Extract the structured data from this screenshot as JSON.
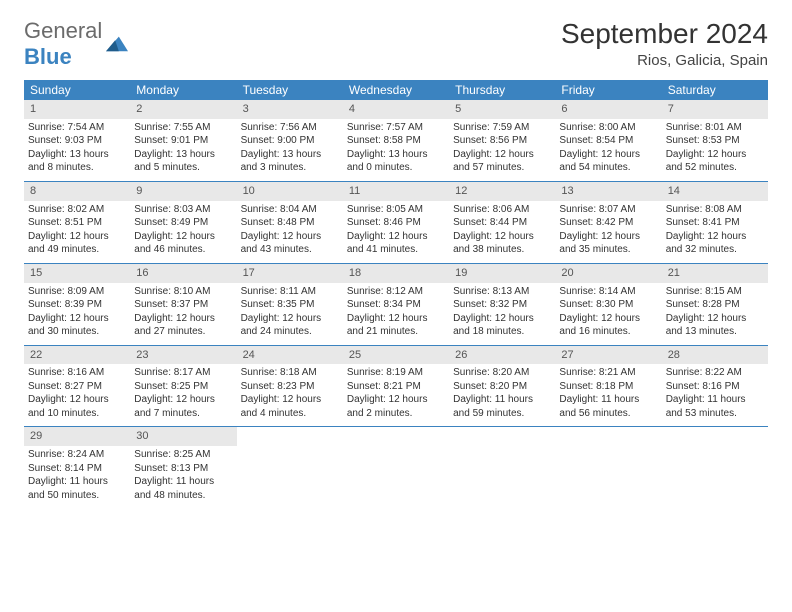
{
  "logo": {
    "general": "General",
    "blue": "Blue"
  },
  "header": {
    "month_title": "September 2024",
    "location": "Rios, Galicia, Spain"
  },
  "colors": {
    "header_blue": "#3b83c0",
    "daynum_bg": "#e8e8e8",
    "logo_gray": "#6b6b6b",
    "logo_blue": "#3b83c0"
  },
  "weekdays": [
    "Sunday",
    "Monday",
    "Tuesday",
    "Wednesday",
    "Thursday",
    "Friday",
    "Saturday"
  ],
  "days": [
    {
      "n": "1",
      "sunrise": "7:54 AM",
      "sunset": "9:03 PM",
      "daylight": "13 hours and 8 minutes."
    },
    {
      "n": "2",
      "sunrise": "7:55 AM",
      "sunset": "9:01 PM",
      "daylight": "13 hours and 5 minutes."
    },
    {
      "n": "3",
      "sunrise": "7:56 AM",
      "sunset": "9:00 PM",
      "daylight": "13 hours and 3 minutes."
    },
    {
      "n": "4",
      "sunrise": "7:57 AM",
      "sunset": "8:58 PM",
      "daylight": "13 hours and 0 minutes."
    },
    {
      "n": "5",
      "sunrise": "7:59 AM",
      "sunset": "8:56 PM",
      "daylight": "12 hours and 57 minutes."
    },
    {
      "n": "6",
      "sunrise": "8:00 AM",
      "sunset": "8:54 PM",
      "daylight": "12 hours and 54 minutes."
    },
    {
      "n": "7",
      "sunrise": "8:01 AM",
      "sunset": "8:53 PM",
      "daylight": "12 hours and 52 minutes."
    },
    {
      "n": "8",
      "sunrise": "8:02 AM",
      "sunset": "8:51 PM",
      "daylight": "12 hours and 49 minutes."
    },
    {
      "n": "9",
      "sunrise": "8:03 AM",
      "sunset": "8:49 PM",
      "daylight": "12 hours and 46 minutes."
    },
    {
      "n": "10",
      "sunrise": "8:04 AM",
      "sunset": "8:48 PM",
      "daylight": "12 hours and 43 minutes."
    },
    {
      "n": "11",
      "sunrise": "8:05 AM",
      "sunset": "8:46 PM",
      "daylight": "12 hours and 41 minutes."
    },
    {
      "n": "12",
      "sunrise": "8:06 AM",
      "sunset": "8:44 PM",
      "daylight": "12 hours and 38 minutes."
    },
    {
      "n": "13",
      "sunrise": "8:07 AM",
      "sunset": "8:42 PM",
      "daylight": "12 hours and 35 minutes."
    },
    {
      "n": "14",
      "sunrise": "8:08 AM",
      "sunset": "8:41 PM",
      "daylight": "12 hours and 32 minutes."
    },
    {
      "n": "15",
      "sunrise": "8:09 AM",
      "sunset": "8:39 PM",
      "daylight": "12 hours and 30 minutes."
    },
    {
      "n": "16",
      "sunrise": "8:10 AM",
      "sunset": "8:37 PM",
      "daylight": "12 hours and 27 minutes."
    },
    {
      "n": "17",
      "sunrise": "8:11 AM",
      "sunset": "8:35 PM",
      "daylight": "12 hours and 24 minutes."
    },
    {
      "n": "18",
      "sunrise": "8:12 AM",
      "sunset": "8:34 PM",
      "daylight": "12 hours and 21 minutes."
    },
    {
      "n": "19",
      "sunrise": "8:13 AM",
      "sunset": "8:32 PM",
      "daylight": "12 hours and 18 minutes."
    },
    {
      "n": "20",
      "sunrise": "8:14 AM",
      "sunset": "8:30 PM",
      "daylight": "12 hours and 16 minutes."
    },
    {
      "n": "21",
      "sunrise": "8:15 AM",
      "sunset": "8:28 PM",
      "daylight": "12 hours and 13 minutes."
    },
    {
      "n": "22",
      "sunrise": "8:16 AM",
      "sunset": "8:27 PM",
      "daylight": "12 hours and 10 minutes."
    },
    {
      "n": "23",
      "sunrise": "8:17 AM",
      "sunset": "8:25 PM",
      "daylight": "12 hours and 7 minutes."
    },
    {
      "n": "24",
      "sunrise": "8:18 AM",
      "sunset": "8:23 PM",
      "daylight": "12 hours and 4 minutes."
    },
    {
      "n": "25",
      "sunrise": "8:19 AM",
      "sunset": "8:21 PM",
      "daylight": "12 hours and 2 minutes."
    },
    {
      "n": "26",
      "sunrise": "8:20 AM",
      "sunset": "8:20 PM",
      "daylight": "11 hours and 59 minutes."
    },
    {
      "n": "27",
      "sunrise": "8:21 AM",
      "sunset": "8:18 PM",
      "daylight": "11 hours and 56 minutes."
    },
    {
      "n": "28",
      "sunrise": "8:22 AM",
      "sunset": "8:16 PM",
      "daylight": "11 hours and 53 minutes."
    },
    {
      "n": "29",
      "sunrise": "8:24 AM",
      "sunset": "8:14 PM",
      "daylight": "11 hours and 50 minutes."
    },
    {
      "n": "30",
      "sunrise": "8:25 AM",
      "sunset": "8:13 PM",
      "daylight": "11 hours and 48 minutes."
    }
  ],
  "labels": {
    "sunrise_prefix": "Sunrise: ",
    "sunset_prefix": "Sunset: ",
    "daylight_prefix": "Daylight: "
  }
}
